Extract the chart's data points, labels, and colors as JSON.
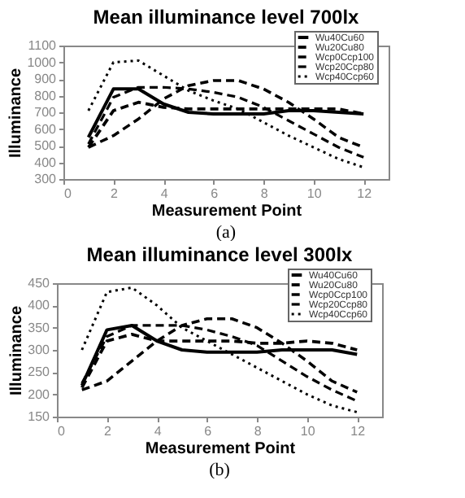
{
  "chart_data": [
    {
      "type": "line",
      "title": "Mean illuminance level 700lx",
      "xlabel": "Measurement Point",
      "ylabel": "Illuminance",
      "x": [
        1,
        2,
        3,
        4,
        5,
        6,
        7,
        8,
        9,
        10,
        11,
        12
      ],
      "xlim": [
        0,
        13
      ],
      "xticks": [
        0,
        2,
        4,
        6,
        8,
        10,
        12
      ],
      "ylim": [
        300,
        1100
      ],
      "yticks": [
        300,
        400,
        500,
        600,
        700,
        800,
        900,
        1000,
        1100
      ],
      "grid": false,
      "legend": "top right",
      "marker": "none",
      "annotations": [
        "(a)"
      ],
      "series": [
        {
          "name": "Wu40Cu60",
          "color": "#000000",
          "line_style": "solid",
          "values": [
            550,
            840,
            840,
            750,
            700,
            690,
            690,
            690,
            710,
            710,
            700,
            690
          ]
        },
        {
          "name": "Wu20Cu80",
          "color": "#000000",
          "line_style": "dashed",
          "values": [
            490,
            710,
            760,
            730,
            720,
            720,
            720,
            720,
            720,
            720,
            720,
            690
          ]
        },
        {
          "name": "Wcp0Ccp100",
          "color": "#000000",
          "line_style": "dashed",
          "values": [
            490,
            560,
            660,
            780,
            860,
            890,
            890,
            840,
            760,
            660,
            550,
            490
          ]
        },
        {
          "name": "Wcp20Ccp80",
          "color": "#000000",
          "line_style": "dashed",
          "values": [
            510,
            790,
            850,
            850,
            840,
            820,
            790,
            730,
            650,
            570,
            490,
            430
          ]
        },
        {
          "name": "Wcp40Ccp60",
          "color": "#000000",
          "line_style": "dotted",
          "values": [
            710,
            1000,
            1010,
            920,
            830,
            770,
            720,
            640,
            560,
            490,
            420,
            370
          ]
        }
      ]
    },
    {
      "type": "line",
      "title": "Mean illuminance level 300lx",
      "xlabel": "Measurement Point",
      "ylabel": "Illuminance",
      "x": [
        1,
        2,
        3,
        4,
        5,
        6,
        7,
        8,
        9,
        10,
        11,
        12
      ],
      "xlim": [
        0,
        13
      ],
      "xticks": [
        0,
        2,
        4,
        6,
        8,
        10,
        12
      ],
      "ylim": [
        150,
        450
      ],
      "yticks": [
        150,
        200,
        250,
        300,
        350,
        400,
        450
      ],
      "grid": false,
      "legend": "top right",
      "marker": "none",
      "annotations": [
        "(b)"
      ],
      "series": [
        {
          "name": "Wu40Cu60",
          "color": "#000000",
          "line_style": "solid",
          "values": [
            220,
            345,
            355,
            320,
            300,
            295,
            295,
            295,
            300,
            300,
            300,
            290
          ]
        },
        {
          "name": "Wu20Cu80",
          "color": "#000000",
          "line_style": "dashed",
          "values": [
            215,
            320,
            335,
            320,
            320,
            320,
            320,
            315,
            315,
            320,
            315,
            300
          ]
        },
        {
          "name": "Wcp0Ccp100",
          "color": "#000000",
          "line_style": "dashed",
          "values": [
            210,
            230,
            275,
            320,
            355,
            370,
            370,
            350,
            315,
            275,
            230,
            205
          ]
        },
        {
          "name": "Wcp20Ccp80",
          "color": "#000000",
          "line_style": "dashed",
          "values": [
            225,
            330,
            355,
            355,
            355,
            345,
            330,
            310,
            275,
            240,
            210,
            185
          ]
        },
        {
          "name": "Wcp40Ccp60",
          "color": "#000000",
          "line_style": "dotted",
          "values": [
            300,
            430,
            440,
            400,
            350,
            320,
            290,
            260,
            230,
            200,
            175,
            160
          ]
        }
      ]
    }
  ]
}
